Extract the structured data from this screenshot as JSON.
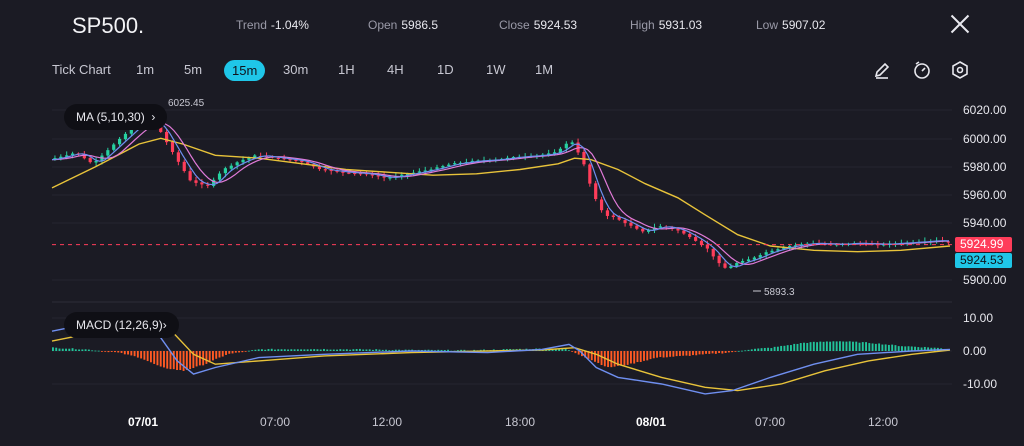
{
  "header": {
    "symbol": "SP500.",
    "trend_label": "Trend",
    "trend_value": "-1.04%",
    "open_label": "Open",
    "open_value": "5986.5",
    "close_label": "Close",
    "close_value": "5924.53",
    "high_label": "High",
    "high_value": "5931.03",
    "low_label": "Low",
    "low_value": "5907.02"
  },
  "timeframes": [
    "Tick Chart",
    "1m",
    "5m",
    "15m",
    "30m",
    "1H",
    "4H",
    "1D",
    "1W",
    "1M"
  ],
  "active_timeframe": "15m",
  "tools": [
    "draw-icon",
    "timer-icon",
    "settings-icon"
  ],
  "colors": {
    "up": "#26d0a0",
    "down": "#ff3d5a",
    "ma5": "#6f8ff0",
    "ma10": "#e07ad8",
    "ma30": "#e8c33a",
    "accent": "#1fc6e8",
    "macd_hist_up": "#22c49a",
    "macd_hist_down": "#ff5a24"
  },
  "indicators": {
    "ma_label": "MA (5,10,30)",
    "macd_label": "MACD (12,26,9)"
  },
  "chart_data": {
    "type": "candlestick",
    "price_axis": {
      "ticks": [
        "6020.00",
        "6000.00",
        "5980.00",
        "5960.00",
        "5940.00",
        "5900.00"
      ],
      "range": [
        5888,
        6028
      ]
    },
    "macd_axis": {
      "ticks": [
        "10.00",
        "0.00",
        "-10.00"
      ],
      "range": [
        -15,
        14
      ]
    },
    "x_ticks": [
      "07/01",
      "07:00",
      "12:00",
      "18:00",
      "08/01",
      "07:00",
      "12:00"
    ],
    "current_price": "5924.99",
    "close_price": "5924.53",
    "annotations": {
      "high_label": "6025.45",
      "low_label": "5893.3"
    },
    "price_path": [
      [
        0,
        5985
      ],
      [
        25,
        5990
      ],
      [
        40,
        5982
      ],
      [
        60,
        5996
      ],
      [
        80,
        6010
      ],
      [
        90,
        6014
      ],
      [
        100,
        6008
      ],
      [
        115,
        5988
      ],
      [
        130,
        5970
      ],
      [
        145,
        5966
      ],
      [
        160,
        5978
      ],
      [
        175,
        5984
      ],
      [
        190,
        5988
      ],
      [
        210,
        5986
      ],
      [
        230,
        5984
      ],
      [
        250,
        5978
      ],
      [
        270,
        5976
      ],
      [
        290,
        5975
      ],
      [
        310,
        5972
      ],
      [
        330,
        5975
      ],
      [
        350,
        5978
      ],
      [
        370,
        5982
      ],
      [
        390,
        5984
      ],
      [
        410,
        5985
      ],
      [
        430,
        5987
      ],
      [
        450,
        5988
      ],
      [
        465,
        5990
      ],
      [
        475,
        5996
      ],
      [
        480,
        5998
      ],
      [
        490,
        5985
      ],
      [
        500,
        5960
      ],
      [
        510,
        5946
      ],
      [
        520,
        5944
      ],
      [
        530,
        5940
      ],
      [
        545,
        5934
      ],
      [
        560,
        5938
      ],
      [
        575,
        5936
      ],
      [
        590,
        5930
      ],
      [
        605,
        5922
      ],
      [
        615,
        5912
      ],
      [
        622,
        5908
      ],
      [
        632,
        5912
      ],
      [
        645,
        5915
      ],
      [
        660,
        5920
      ],
      [
        680,
        5924
      ],
      [
        700,
        5926
      ],
      [
        720,
        5925
      ],
      [
        740,
        5926
      ],
      [
        760,
        5925
      ],
      [
        780,
        5926
      ],
      [
        800,
        5927
      ],
      [
        815,
        5928
      ],
      [
        825,
        5927
      ]
    ],
    "ma30_path": [
      [
        0,
        5965
      ],
      [
        40,
        5980
      ],
      [
        80,
        5996
      ],
      [
        100,
        6000
      ],
      [
        120,
        5996
      ],
      [
        150,
        5988
      ],
      [
        190,
        5986
      ],
      [
        230,
        5982
      ],
      [
        270,
        5978
      ],
      [
        310,
        5976
      ],
      [
        350,
        5974
      ],
      [
        390,
        5975
      ],
      [
        430,
        5978
      ],
      [
        465,
        5982
      ],
      [
        480,
        5986
      ],
      [
        495,
        5985
      ],
      [
        520,
        5978
      ],
      [
        545,
        5968
      ],
      [
        575,
        5958
      ],
      [
        600,
        5946
      ],
      [
        630,
        5932
      ],
      [
        660,
        5924
      ],
      [
        700,
        5921
      ],
      [
        740,
        5920
      ],
      [
        780,
        5921
      ],
      [
        825,
        5924
      ]
    ],
    "macd_hist_path": [
      [
        0,
        1
      ],
      [
        30,
        0.5
      ],
      [
        60,
        -0.5
      ],
      [
        80,
        -2
      ],
      [
        100,
        -5
      ],
      [
        120,
        -6
      ],
      [
        140,
        -4
      ],
      [
        160,
        -1
      ],
      [
        190,
        0.5
      ],
      [
        230,
        0.6
      ],
      [
        280,
        0.5
      ],
      [
        330,
        0.3
      ],
      [
        380,
        0.2
      ],
      [
        430,
        0.6
      ],
      [
        470,
        0.8
      ],
      [
        490,
        -2
      ],
      [
        510,
        -5
      ],
      [
        530,
        -4
      ],
      [
        555,
        -2
      ],
      [
        580,
        -1.5
      ],
      [
        600,
        -1
      ],
      [
        620,
        -0.5
      ],
      [
        640,
        0.5
      ],
      [
        660,
        1
      ],
      [
        690,
        2.5
      ],
      [
        720,
        3
      ],
      [
        750,
        2.5
      ],
      [
        780,
        1.5
      ],
      [
        810,
        1
      ],
      [
        825,
        0.5
      ]
    ],
    "macd_line_path": [
      [
        0,
        6
      ],
      [
        60,
        10
      ],
      [
        85,
        11
      ],
      [
        100,
        4
      ],
      [
        115,
        -3
      ],
      [
        130,
        -7
      ],
      [
        150,
        -5
      ],
      [
        190,
        -2
      ],
      [
        250,
        -1
      ],
      [
        330,
        0
      ],
      [
        400,
        -0.5
      ],
      [
        450,
        0.5
      ],
      [
        475,
        2
      ],
      [
        485,
        0
      ],
      [
        500,
        -5
      ],
      [
        520,
        -8
      ],
      [
        560,
        -10
      ],
      [
        600,
        -13
      ],
      [
        625,
        -12
      ],
      [
        660,
        -8
      ],
      [
        700,
        -4
      ],
      [
        740,
        -1
      ],
      [
        790,
        0
      ],
      [
        825,
        0.5
      ]
    ],
    "signal_line_path": [
      [
        0,
        3
      ],
      [
        60,
        7
      ],
      [
        90,
        10
      ],
      [
        110,
        6
      ],
      [
        130,
        -1
      ],
      [
        150,
        -4
      ],
      [
        190,
        -3
      ],
      [
        250,
        -1.5
      ],
      [
        330,
        -0.5
      ],
      [
        400,
        0
      ],
      [
        450,
        0.3
      ],
      [
        480,
        1
      ],
      [
        500,
        -1
      ],
      [
        520,
        -4
      ],
      [
        560,
        -8
      ],
      [
        600,
        -11
      ],
      [
        630,
        -12
      ],
      [
        670,
        -10
      ],
      [
        710,
        -6
      ],
      [
        750,
        -3
      ],
      [
        790,
        -1
      ],
      [
        825,
        0.3
      ]
    ]
  }
}
